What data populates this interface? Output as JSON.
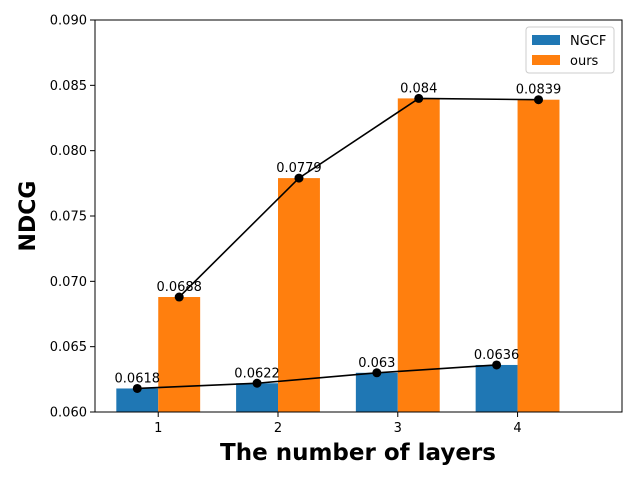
{
  "chart_data": {
    "type": "bar",
    "categories": [
      "1",
      "2",
      "3",
      "4"
    ],
    "series": [
      {
        "name": "NGCF",
        "values": [
          0.0618,
          0.0622,
          0.063,
          0.0636
        ],
        "color": "#1f77b4",
        "labels": [
          "0.0618",
          "0.0622",
          "0.063",
          "0.0636"
        ]
      },
      {
        "name": "ours",
        "values": [
          0.0688,
          0.0779,
          0.084,
          0.0839
        ],
        "color": "#ff7f0e",
        "labels": [
          "0.0688",
          "0.0779",
          "0.084",
          "0.0839"
        ]
      }
    ],
    "overlay_lines": {
      "color": "#000000",
      "marker": "circle"
    },
    "xlabel": "The number of layers",
    "ylabel": "NDCG",
    "ylim": [
      0.06,
      0.09
    ],
    "yticks": [
      0.06,
      0.065,
      0.07,
      0.075,
      0.08,
      0.085,
      0.09
    ],
    "ytick_labels": [
      "0.060",
      "0.065",
      "0.070",
      "0.075",
      "0.080",
      "0.085",
      "0.090"
    ],
    "legend_position": "top-right",
    "grid": false
  }
}
